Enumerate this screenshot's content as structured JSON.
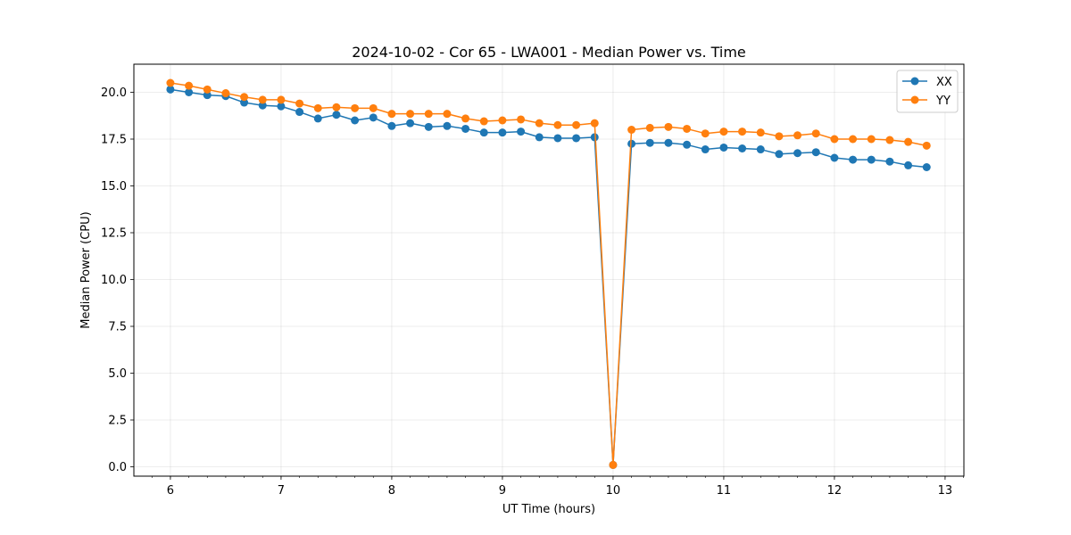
{
  "chart_data": {
    "type": "line",
    "title": "2024-10-02 - Cor 65 - LWA001 - Median Power vs. Time",
    "xlabel": "UT Time (hours)",
    "ylabel": "Median Power (CPU)",
    "xlim": [
      5.67,
      13.17
    ],
    "ylim": [
      -0.5,
      21.5
    ],
    "xticks": [
      6,
      7,
      8,
      9,
      10,
      11,
      12,
      13
    ],
    "xtick_labels": [
      "6",
      "7",
      "8",
      "9",
      "10",
      "11",
      "12",
      "13"
    ],
    "yticks": [
      0,
      2.5,
      5,
      7.5,
      10,
      12.5,
      15,
      17.5,
      20
    ],
    "ytick_labels": [
      "0.0",
      "2.5",
      "5.0",
      "7.5",
      "10.0",
      "12.5",
      "15.0",
      "17.5",
      "20.0"
    ],
    "grid": true,
    "legend_position": "top-right",
    "x": [
      6.0,
      6.1667,
      6.3333,
      6.5,
      6.6667,
      6.8333,
      7.0,
      7.1667,
      7.3333,
      7.5,
      7.6667,
      7.8333,
      8.0,
      8.1667,
      8.3333,
      8.5,
      8.6667,
      8.8333,
      9.0,
      9.1667,
      9.3333,
      9.5,
      9.6667,
      9.8333,
      10.0,
      10.1667,
      10.3333,
      10.5,
      10.6667,
      10.8333,
      11.0,
      11.1667,
      11.3333,
      11.5,
      11.6667,
      11.8333,
      12.0,
      12.1667,
      12.3333,
      12.5,
      12.6667,
      12.8333
    ],
    "series": [
      {
        "name": "XX",
        "color": "#1f77b4",
        "values": [
          20.15,
          20.0,
          19.85,
          19.8,
          19.45,
          19.3,
          19.25,
          18.95,
          18.6,
          18.8,
          18.5,
          18.65,
          18.2,
          18.35,
          18.15,
          18.2,
          18.05,
          17.85,
          17.85,
          17.9,
          17.6,
          17.55,
          17.55,
          17.6,
          0.1,
          17.25,
          17.3,
          17.3,
          17.2,
          16.95,
          17.05,
          17.0,
          16.95,
          16.7,
          16.75,
          16.8,
          16.5,
          16.4,
          16.4,
          16.3,
          16.1,
          16.0
        ]
      },
      {
        "name": "YY",
        "color": "#ff7f0e",
        "values": [
          20.5,
          20.35,
          20.15,
          19.95,
          19.75,
          19.6,
          19.6,
          19.4,
          19.15,
          19.2,
          19.15,
          19.15,
          18.85,
          18.85,
          18.85,
          18.85,
          18.6,
          18.45,
          18.5,
          18.55,
          18.35,
          18.25,
          18.25,
          18.35,
          0.1,
          18.0,
          18.1,
          18.15,
          18.05,
          17.8,
          17.9,
          17.9,
          17.85,
          17.65,
          17.7,
          17.8,
          17.5,
          17.5,
          17.5,
          17.45,
          17.35,
          17.15
        ]
      }
    ]
  }
}
